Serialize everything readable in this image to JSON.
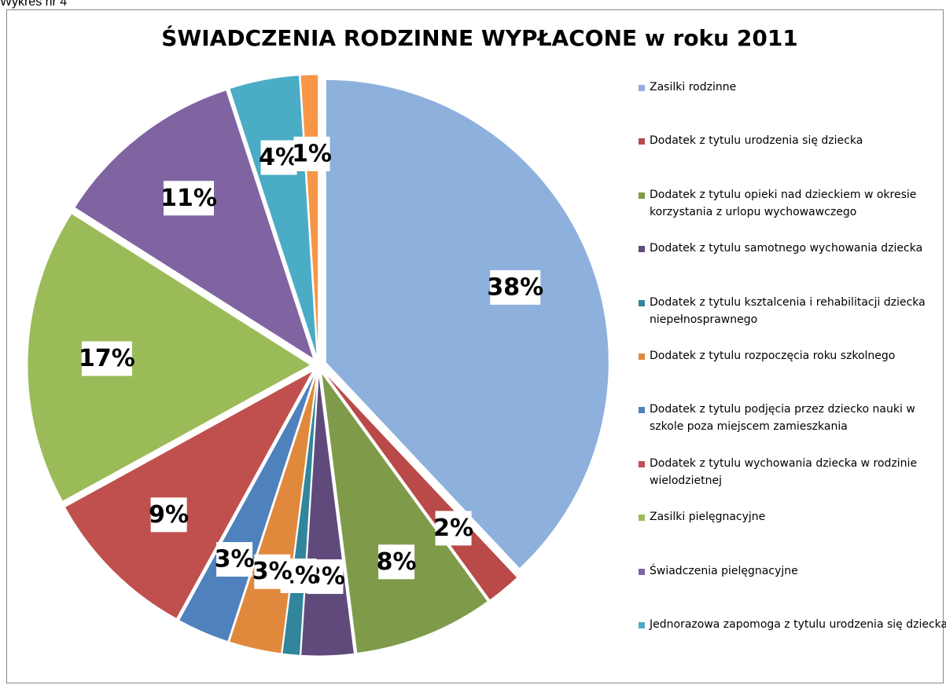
{
  "page_label": "Wykres nr 4",
  "chart_data": {
    "type": "pie",
    "title": "ŚWIADCZENIA RODZINNE WYPŁACONE  w roku 2011",
    "categories": [
      "Zasilki rodzinne",
      "Dodatek z tytulu urodzenia się dziecka",
      "Dodatek z tytulu opieki nad dzieckiem w okresie korzystania z urlopu wychowawczego",
      "Dodatek z tytulu samotnego wychowania dziecka",
      "Dodatek z tytulu ksztalcenia i rehabilitacji dziecka niepełnosprawnego",
      "Dodatek z tytulu rozpoczęcia roku szkolnego",
      "Dodatek z tytulu podjęcia przez dziecko nauki w szkole poza miejscem zamieszkania",
      "Dodatek z tytulu wychowania dziecka w rodzinie wielodzietnej",
      "Zasilki pielęgnacyjne",
      "Świadczenia pielęgnacyjne",
      "Jednorazowa zapomoga z tytulu urodzenia się dziecka",
      null
    ],
    "values": [
      38,
      2,
      8,
      3,
      1,
      3,
      3,
      9,
      17,
      11,
      4,
      1
    ],
    "value_labels": [
      "38%",
      "2%",
      "8%",
      "3%",
      "1%",
      "3%",
      "3%",
      "9%",
      "17%",
      "11%",
      "4%",
      "1%"
    ],
    "colors": [
      "#8eb0dc",
      "#b94a48",
      "#7f9b4a",
      "#604a7b",
      "#31859c",
      "#e0893c",
      "#4f81bd",
      "#c0504d",
      "#9bbb59",
      "#8064a2",
      "#4bacc6",
      "#f79646"
    ],
    "legend": "right"
  }
}
